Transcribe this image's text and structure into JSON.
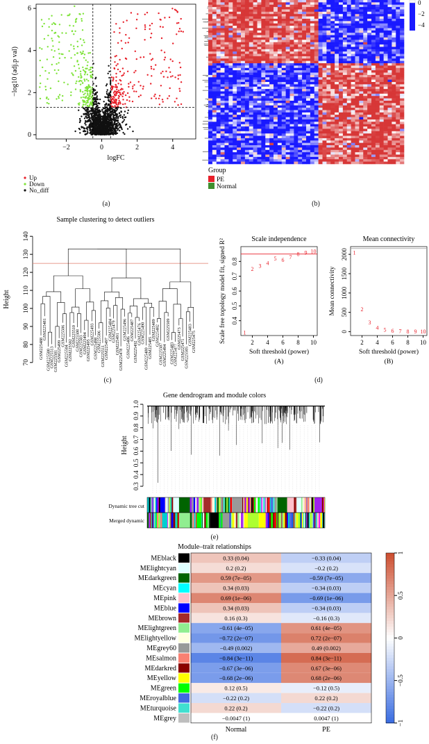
{
  "panel_labels": {
    "a": "(a)",
    "b": "(b)",
    "c": "(c)",
    "d": "(d)",
    "e": "(e)",
    "f": "(f)"
  },
  "colors": {
    "up": "#e8202a",
    "down": "#7fe33a",
    "nodiff": "#111111",
    "heat_high": "#e8202a",
    "heat_low": "#1a1aff",
    "pe": "#e8202a",
    "normal": "#3f8f2f"
  },
  "chart_data": [
    {
      "type": "scatter",
      "id": "volcano",
      "title": "",
      "xlabel": "logFC",
      "ylabel": "−log10 (adj.p val)",
      "xticks": [
        "−2",
        "0",
        "2",
        "4"
      ],
      "yticks": [
        "0",
        "2",
        "4",
        "6"
      ],
      "xlim": [
        -3.7,
        5.3
      ],
      "ylim": [
        -0.2,
        6.2
      ],
      "fc_cutoff": 0.5,
      "p_cutoff": 1.3,
      "legend": [
        {
          "name": "Up",
          "color": "#e8202a"
        },
        {
          "name": "Down",
          "color": "#7fe33a"
        },
        {
          "name": "No_diff",
          "color": "#111111"
        }
      ]
    },
    {
      "type": "heatmap",
      "id": "heatmap",
      "scale_ticks": [
        "0",
        "−2",
        "−4"
      ],
      "group_label": "Group",
      "groups": [
        {
          "name": "PE",
          "color": "#e8202a"
        },
        {
          "name": "Normal",
          "color": "#3f8f2f"
        }
      ]
    },
    {
      "type": "dendrogram",
      "id": "sample-clustering",
      "title": "Sample clustering to detect outliers",
      "ylabel": "Height",
      "yticks": [
        "70",
        "80",
        "90",
        "100",
        "110",
        "120",
        "130",
        "140"
      ],
      "ylim": [
        68,
        142
      ],
      "cut_height": 125,
      "leaf_labels": [
        "GSM225488",
        "GSM225481",
        "GSM225500",
        "GSM225513",
        "GSM225501",
        "GSM225499",
        "GSM225506",
        "GSM225504",
        "GSM225502",
        "GSM225510",
        "GSM225508",
        "GSM225503",
        "GSM225494",
        "GSM225495",
        "GSM225493",
        "GSM225498",
        "GSM225506",
        "GSM225511",
        "GSM225497",
        "GSM225484",
        "GSM225479",
        "GSM225491",
        "GSM225478",
        "GSM225496",
        "GSM225486",
        "GSM225487",
        "GSM225492",
        "GSM225476",
        "GSM225490",
        "GSM225480",
        "GSM225485",
        "GSM225489",
        "GSM225482",
        "GSM225507",
        "GSM225494",
        "GSM225509",
        "GSM225483",
        "GSM225477",
        "GSM225473",
        "GSM225471",
        "GSM225505",
        "GSM225483",
        "GSM225475"
      ]
    },
    {
      "type": "scatter",
      "id": "scale-independence",
      "title": "Scale independence",
      "xlabel": "Soft threshold (power)",
      "ylabel": "Scale free topology model fit, signed R²",
      "sublabel": "(A)",
      "x": [
        1,
        2,
        3,
        4,
        5,
        6,
        7,
        8,
        9,
        10
      ],
      "y": [
        0.32,
        0.75,
        0.77,
        0.79,
        0.82,
        0.81,
        0.83,
        0.85,
        0.86,
        0.87
      ],
      "xticks": [
        "2",
        "4",
        "6",
        "8",
        "10"
      ],
      "yticks": [
        "0.4",
        "0.5",
        "0.6",
        "0.7",
        "0.8"
      ],
      "xlim": [
        0.5,
        10.5
      ],
      "ylim": [
        0.3,
        0.9
      ],
      "hline": 0.85
    },
    {
      "type": "scatter",
      "id": "mean-connectivity",
      "title": "Mean connectivity",
      "xlabel": "Soft threshold (power)",
      "ylabel": "Mean connectivity",
      "sublabel": "(B)",
      "x": [
        1,
        2,
        3,
        4,
        5,
        6,
        7,
        8,
        9,
        10
      ],
      "y": [
        2050,
        580,
        240,
        110,
        55,
        25,
        15,
        10,
        6,
        4
      ],
      "xticks": [
        "2",
        "4",
        "6",
        "8",
        "10"
      ],
      "yticks": [
        "0",
        "500",
        "1000",
        "1500",
        "2000"
      ],
      "xlim": [
        0.5,
        10.5
      ],
      "ylim": [
        -100,
        2200
      ],
      "hline": 2150
    },
    {
      "type": "dendrogram",
      "id": "gene-dendrogram",
      "title": "Gene dendrogram and module colors",
      "ylabel": "Height",
      "yticks": [
        "0.3",
        "0.4",
        "0.5",
        "0.6",
        "0.7",
        "0.8",
        "0.9",
        "1.0"
      ],
      "ylim": [
        0.3,
        1.0
      ],
      "row_labels": [
        "Dynamic tree cut",
        "Merged dynamic"
      ]
    },
    {
      "type": "heatmap",
      "id": "module-trait",
      "title": "Module–trait relationships",
      "columns": [
        "Normal",
        "PE"
      ],
      "colorbar_ticks": [
        "1",
        "0.5",
        "0",
        "−0.5",
        "−1"
      ],
      "rows": [
        {
          "name": "MEblack",
          "color": "#000000",
          "normal": 0.33,
          "normal_label": "0.33 (0.04)",
          "pe": -0.33,
          "pe_label": "−0.33 (0.04)"
        },
        {
          "name": "MElightcyan",
          "color": "#e0ffff",
          "normal": 0.2,
          "normal_label": "0.2 (0.2)",
          "pe": -0.2,
          "pe_label": "−0.2 (0.2)"
        },
        {
          "name": "MEdarkgreen",
          "color": "#006400",
          "normal": 0.59,
          "normal_label": "0.59 (7e−05)",
          "pe": -0.59,
          "pe_label": "−0.59 (7e−05)"
        },
        {
          "name": "MEcyan",
          "color": "#00ffff",
          "normal": 0.34,
          "normal_label": "0.34 (0.03)",
          "pe": -0.34,
          "pe_label": "−0.34 (0.03)"
        },
        {
          "name": "MEpink",
          "color": "#ffc0cb",
          "normal": 0.69,
          "normal_label": "0.69 (1e−06)",
          "pe": -0.69,
          "pe_label": "−0.69 (1e−06)"
        },
        {
          "name": "MEblue",
          "color": "#0000ff",
          "normal": 0.34,
          "normal_label": "0.34 (0.03)",
          "pe": -0.34,
          "pe_label": "−0.34 (0.03)"
        },
        {
          "name": "MEbrown",
          "color": "#a52a2a",
          "normal": 0.16,
          "normal_label": "0.16 (0.3)",
          "pe": -0.16,
          "pe_label": "−0.16 (0.3)"
        },
        {
          "name": "MElightgreen",
          "color": "#90ee90",
          "normal": -0.61,
          "normal_label": "−0.61 (4e−05)",
          "pe": 0.61,
          "pe_label": "0.61 (4e−05)"
        },
        {
          "name": "MElightyellow",
          "color": "#ffffe0",
          "normal": -0.72,
          "normal_label": "−0.72 (2e−07)",
          "pe": 0.72,
          "pe_label": "0.72 (2e−07)"
        },
        {
          "name": "MEgrey60",
          "color": "#999999",
          "normal": -0.49,
          "normal_label": "−0.49 (0.002)",
          "pe": 0.49,
          "pe_label": "0.49 (0.002)"
        },
        {
          "name": "MEsalmon",
          "color": "#fa8072",
          "normal": -0.84,
          "normal_label": "−0.84 (3e−11)",
          "pe": 0.84,
          "pe_label": "0.84 (3e−11)"
        },
        {
          "name": "MEdarkred",
          "color": "#8b0000",
          "normal": -0.67,
          "normal_label": "−0.67 (3e−06)",
          "pe": 0.67,
          "pe_label": "0.67 (3e−06)"
        },
        {
          "name": "MEyellow",
          "color": "#ffff00",
          "normal": -0.68,
          "normal_label": "−0.68 (2e−06)",
          "pe": 0.68,
          "pe_label": "0.68 (2e−06)"
        },
        {
          "name": "MEgreen",
          "color": "#00ff00",
          "normal": 0.12,
          "normal_label": "0.12 (0.5)",
          "pe": -0.12,
          "pe_label": "−0.12 (0.5)"
        },
        {
          "name": "MEroyalblue",
          "color": "#4169e1",
          "normal": -0.22,
          "normal_label": "−0.22 (0.2)",
          "pe": 0.22,
          "pe_label": "0.22 (0.2)"
        },
        {
          "name": "MEturquoise",
          "color": "#40e0d0",
          "normal": 0.22,
          "normal_label": "0.22 (0.2)",
          "pe": -0.22,
          "pe_label": "−0.22 (0.2)"
        },
        {
          "name": "MEgrey",
          "color": "#bebebe",
          "normal": -0.0047,
          "normal_label": "−0.0047 (1)",
          "pe": 0.0047,
          "pe_label": "0.0047 (1)"
        }
      ]
    }
  ]
}
